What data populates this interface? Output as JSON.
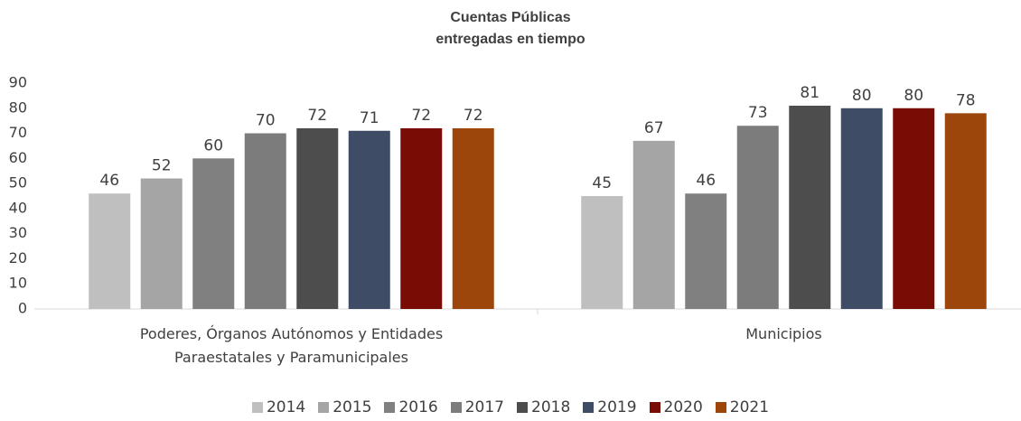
{
  "chart_data": {
    "type": "bar",
    "title": "Cuentas Públicas entregadas en tiempo",
    "categories": [
      "Poderes, Órganos Autónomos y Entidades Paraestatales y Paramunicipales",
      "Municipios"
    ],
    "series": [
      {
        "name": "2014",
        "color": "#bfbfbf",
        "values": [
          46,
          45
        ]
      },
      {
        "name": "2015",
        "color": "#a5a5a5",
        "values": [
          52,
          67
        ]
      },
      {
        "name": "2016",
        "color": "#808080",
        "values": [
          60,
          46
        ]
      },
      {
        "name": "2017",
        "color": "#7c7c7c",
        "values": [
          70,
          73
        ]
      },
      {
        "name": "2018",
        "color": "#4d4d4d",
        "values": [
          72,
          81
        ]
      },
      {
        "name": "2019",
        "color": "#3e4c66",
        "values": [
          71,
          80
        ]
      },
      {
        "name": "2020",
        "color": "#7a0c06",
        "values": [
          72,
          80
        ]
      },
      {
        "name": "2021",
        "color": "#9c460c",
        "values": [
          72,
          78
        ]
      }
    ],
    "ylim": [
      0,
      90
    ],
    "yticks": [
      0,
      10,
      20,
      30,
      40,
      50,
      60,
      70,
      80,
      90
    ],
    "grid": false
  }
}
